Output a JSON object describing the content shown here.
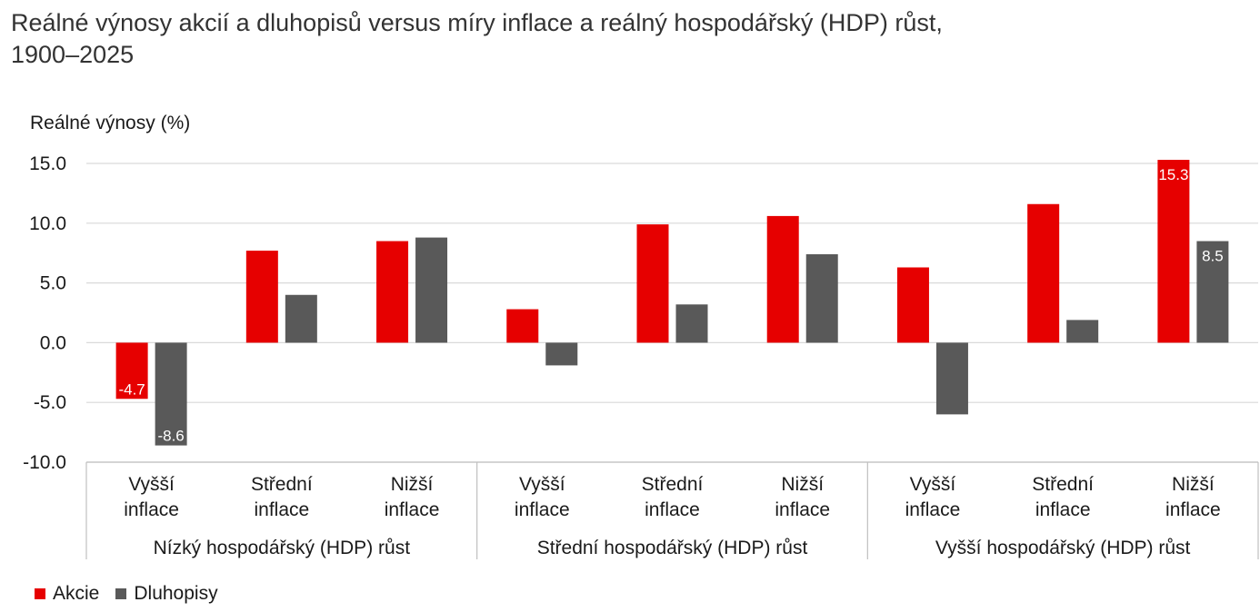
{
  "chart_data": {
    "type": "bar",
    "title_line1": "Reálné výnosy akcií a dluhopisů versus míry inflace a reálný hospodářský (HDP) růst,",
    "title_line2": "1900–2025",
    "ylabel": "Reálné výnosy (%)",
    "ylim": [
      -10,
      15
    ],
    "yticks": [
      "15.0",
      "10.0",
      "5.0",
      "0.0",
      "-5.0",
      "-10.0"
    ],
    "ytick_values": [
      15,
      10,
      5,
      0,
      -5,
      -10
    ],
    "grid": true,
    "legend_position": "bottom-left",
    "groups": [
      {
        "label": "Nízký hospodářský (HDP) růst",
        "categories": [
          [
            "Vyšší",
            "inflace"
          ],
          [
            "Střední",
            "inflace"
          ],
          [
            "Nižší",
            "inflace"
          ]
        ]
      },
      {
        "label": "Střední hospodářský (HDP) růst",
        "categories": [
          [
            "Vyšší",
            "inflace"
          ],
          [
            "Střední",
            "inflace"
          ],
          [
            "Nižší",
            "inflace"
          ]
        ]
      },
      {
        "label": "Vyšší hospodářský (HDP) růst",
        "categories": [
          [
            "Vyšší",
            "inflace"
          ],
          [
            "Střední",
            "inflace"
          ],
          [
            "Nižší",
            "inflace"
          ]
        ]
      }
    ],
    "series": [
      {
        "name": "Akcie",
        "color": "#e60000",
        "values": [
          -4.7,
          7.7,
          8.5,
          2.8,
          9.9,
          10.6,
          6.3,
          11.6,
          15.3
        ],
        "labels": [
          "-4.7",
          "",
          "",
          "",
          "",
          "",
          "",
          "",
          "15.3"
        ]
      },
      {
        "name": "Dluhopisy",
        "color": "#595959",
        "values": [
          -8.6,
          4.0,
          8.8,
          -1.9,
          3.2,
          7.4,
          -6.0,
          1.9,
          8.5
        ],
        "labels": [
          "-8.6",
          "",
          "",
          "",
          "",
          "",
          "",
          "",
          "8.5"
        ]
      }
    ]
  }
}
